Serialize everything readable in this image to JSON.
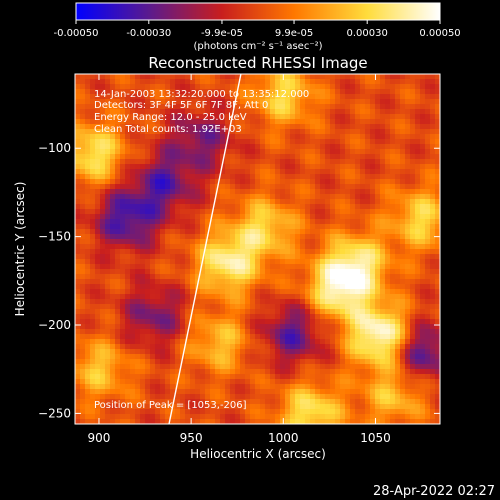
{
  "colorbar": {
    "tick_labels": [
      "-0.00050",
      "-0.00030",
      "-9.9e-05",
      "9.9e-05",
      "0.00030",
      "0.00050"
    ],
    "tick_values": [
      -0.0005,
      -0.0003,
      -9.9e-05,
      9.9e-05,
      0.0003,
      0.0005
    ],
    "range": [
      -0.0005,
      0.0005
    ],
    "unit_label": "(photons cm⁻² s⁻¹ asec⁻²)",
    "colormap": [
      "#0000ff",
      "#5a1a8e",
      "#c81e1e",
      "#ff7800",
      "#ffdc3c",
      "#ffffff"
    ]
  },
  "annotations": {
    "time_range": "14-Jan-2003 13:32:20.000 to 13:35:12.000",
    "detectors": "Detectors: 3F 4F 5F 6F 7F 8F, Att 0",
    "energy_range": "Energy Range: 12.0 - 25.0 keV",
    "clean": "Clean     Total counts: 1.92E+03",
    "peak": "Position of Peak = [1053,-206]"
  },
  "footer": {
    "timestamp": "28-Apr-2022 02:27"
  },
  "chart_data": {
    "type": "heatmap",
    "title": "Reconstructed RHESSI Image",
    "xlabel": "Heliocentric X (arcsec)",
    "ylabel": "Heliocentric Y (arcsec)",
    "xlim": [
      887,
      1085
    ],
    "ylim": [
      -256,
      -58
    ],
    "x_ticks": [
      900,
      950,
      1000,
      1050
    ],
    "x_tick_labels": [
      "900",
      "950",
      "1000",
      "1050"
    ],
    "y_ticks": [
      -100,
      -150,
      -200,
      -250
    ],
    "y_tick_labels": [
      "−100",
      "−150",
      "−200",
      "−250"
    ],
    "peak_position": [
      1053,
      -206
    ],
    "limb_line": {
      "x": [
        938,
        977
      ],
      "y": [
        -256,
        -58
      ]
    },
    "bright_sources": [
      {
        "x": 897,
        "y": -103,
        "value": 0.00035
      },
      {
        "x": 1000,
        "y": -70,
        "value": 0.0003
      },
      {
        "x": 1040,
        "y": -165,
        "value": 0.00035
      },
      {
        "x": 1053,
        "y": -206,
        "value": 0.0005
      },
      {
        "x": 1030,
        "y": -180,
        "value": 0.0004
      },
      {
        "x": 1075,
        "y": -140,
        "value": 0.0003
      },
      {
        "x": 990,
        "y": -145,
        "value": 0.0003
      },
      {
        "x": 970,
        "y": -165,
        "value": 0.0004
      },
      {
        "x": 965,
        "y": -210,
        "value": 0.00025
      },
      {
        "x": 1015,
        "y": -250,
        "value": 0.00035
      },
      {
        "x": 1060,
        "y": -240,
        "value": 0.00025
      },
      {
        "x": 900,
        "y": -225,
        "value": 0.00025
      }
    ],
    "dark_sources": [
      {
        "x": 915,
        "y": -140,
        "value": -0.00035
      },
      {
        "x": 935,
        "y": -120,
        "value": -0.0003
      },
      {
        "x": 930,
        "y": -195,
        "value": -0.00025
      },
      {
        "x": 1075,
        "y": -215,
        "value": -0.00035
      },
      {
        "x": 1005,
        "y": -205,
        "value": -0.0003
      },
      {
        "x": 955,
        "y": -95,
        "value": -0.00025
      }
    ]
  }
}
